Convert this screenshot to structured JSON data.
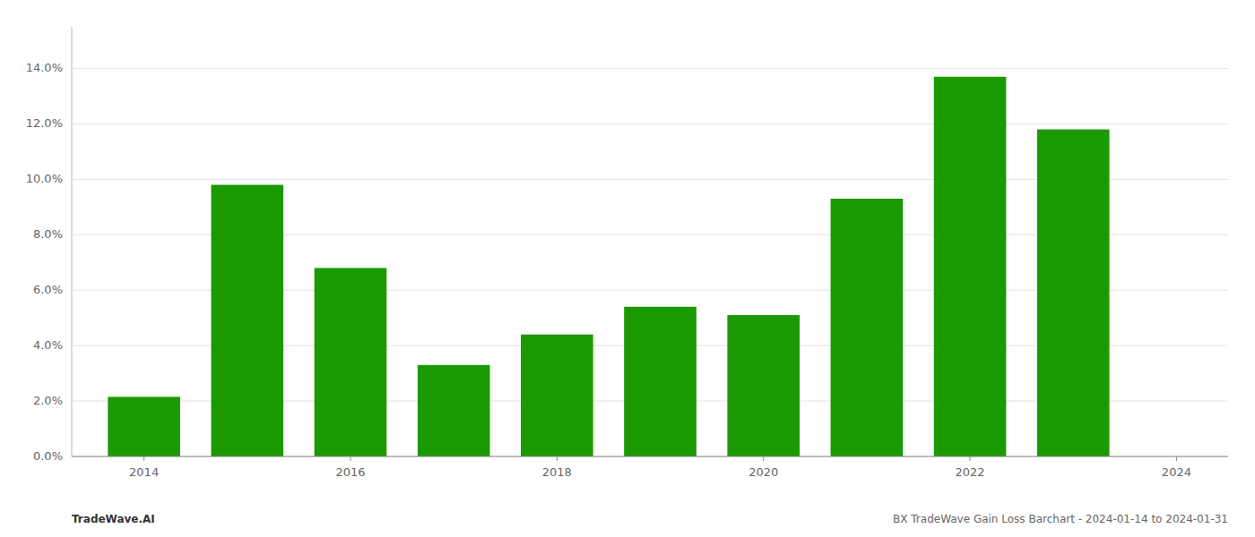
{
  "chart_data": {
    "type": "bar",
    "x": [
      2014,
      2015,
      2016,
      2017,
      2018,
      2019,
      2020,
      2021,
      2022,
      2023
    ],
    "values": [
      0.0215,
      0.098,
      0.068,
      0.033,
      0.044,
      0.054,
      0.051,
      0.093,
      0.137,
      0.118
    ],
    "color": "#1a9a00",
    "xlim": [
      2013.3,
      2024.5
    ],
    "xticks": [
      2014,
      2016,
      2018,
      2020,
      2022,
      2024
    ],
    "ylim": [
      0,
      0.155
    ],
    "yticks": [
      {
        "value": 0.0,
        "label": "0.0%"
      },
      {
        "value": 0.02,
        "label": "2.0%"
      },
      {
        "value": 0.04,
        "label": "4.0%"
      },
      {
        "value": 0.06,
        "label": "6.0%"
      },
      {
        "value": 0.08,
        "label": "8.0%"
      },
      {
        "value": 0.1,
        "label": "10.0%"
      },
      {
        "value": 0.12,
        "label": "12.0%"
      },
      {
        "value": 0.14,
        "label": "14.0%"
      }
    ],
    "grid": true,
    "annotations": [
      "TradeWave.AI",
      "BX TradeWave Gain Loss Barchart - 2024-01-14 to 2024-01-31"
    ]
  }
}
